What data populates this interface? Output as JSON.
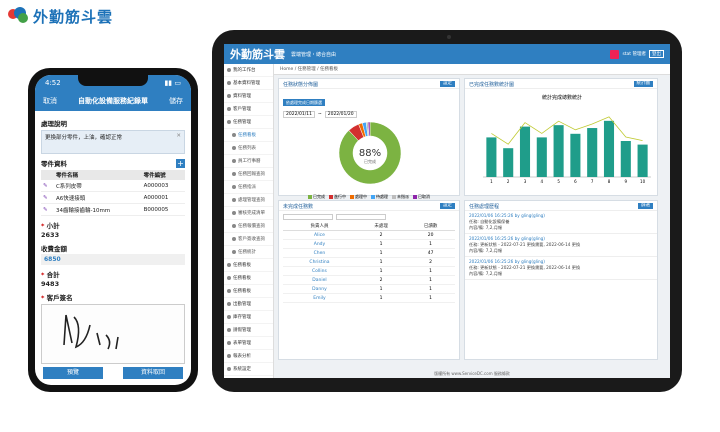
{
  "logo": {
    "text": "外勤筋斗雲"
  },
  "phone": {
    "time": "4:52",
    "nav": {
      "cancel": "取消",
      "title": "自動化設備服務紀錄單",
      "save": "儲存"
    },
    "desc_label": "處理說明",
    "desc_text": "更換部分零件，上油，確認正常",
    "parts_label": "零件資料",
    "parts_headers": [
      "零件名稱",
      "零件編號"
    ],
    "parts": [
      {
        "name": "C系列皮帶",
        "code": "A000003"
      },
      {
        "name": "A6快速接頭",
        "code": "A000001"
      },
      {
        "name": "34齒輪接齒輪-10mm",
        "code": "B000005"
      }
    ],
    "subtotal_label": "小計",
    "subtotal": "2633",
    "fee_label": "收費金額",
    "fee": "6850",
    "total_label": "合計",
    "total": "9483",
    "sign_label": "客戶簽名",
    "btn_preview": "預覽",
    "btn_fetch": "資料取回"
  },
  "tablet": {
    "brand": "外勤筋斗雲",
    "slogan": "雲端管理・總合自由",
    "user": "stat 管理者",
    "logout": "登出",
    "crumb": "Home / 任務管理 / 任務看板",
    "sidebar": [
      {
        "label": "我的工作台",
        "sub": false,
        "active": false
      },
      {
        "label": "基本資料管理",
        "sub": false,
        "active": false
      },
      {
        "label": "資料管理",
        "sub": false,
        "active": false
      },
      {
        "label": "客戶管理",
        "sub": false,
        "active": false
      },
      {
        "label": "任務管理",
        "sub": false,
        "active": false
      },
      {
        "label": "任務看板",
        "sub": true,
        "active": true
      },
      {
        "label": "任務列表",
        "sub": true,
        "active": false
      },
      {
        "label": "員工行事曆",
        "sub": true,
        "active": false
      },
      {
        "label": "任務回報查詢",
        "sub": true,
        "active": false
      },
      {
        "label": "任務指派",
        "sub": true,
        "active": false
      },
      {
        "label": "處理管理查詢",
        "sub": true,
        "active": false
      },
      {
        "label": "審核完成清單",
        "sub": true,
        "active": false
      },
      {
        "label": "任務報價查詢",
        "sub": true,
        "active": false
      },
      {
        "label": "客戶簽收查詢",
        "sub": true,
        "active": false
      },
      {
        "label": "任務統計",
        "sub": true,
        "active": false
      },
      {
        "label": "任務看板",
        "sub": false,
        "active": false
      },
      {
        "label": "任務看板",
        "sub": false,
        "active": false
      },
      {
        "label": "任務看板",
        "sub": false,
        "active": false
      },
      {
        "label": "出勤管理",
        "sub": false,
        "active": false
      },
      {
        "label": "庫存管理",
        "sub": false,
        "active": false
      },
      {
        "label": "請假管理",
        "sub": false,
        "active": false
      },
      {
        "label": "表單管理",
        "sub": false,
        "active": false
      },
      {
        "label": "報表分析",
        "sub": false,
        "active": false
      },
      {
        "label": "系統設定",
        "sub": false,
        "active": false
      },
      {
        "label": "登出",
        "sub": false,
        "active": false
      }
    ],
    "status_panel": {
      "title": "任務狀態分佈圖",
      "tab": "依處理完成日期篩選",
      "btn": "設定",
      "date_from": "2022/01/11",
      "date_to": "2022/01/20",
      "center": "88%",
      "center_sub": "已完成"
    },
    "trend_panel": {
      "title": "已完成任務數統計圖",
      "btn": "統計圖",
      "chart_title": "統計完成總數統計"
    },
    "user_panel": {
      "title": "未完成任務數",
      "btn": "設定",
      "headers": [
        "負責人員",
        "未處理",
        "已讀數"
      ],
      "rows": [
        [
          "Alice",
          "2",
          "20"
        ],
        [
          "Andy",
          "1",
          "1"
        ],
        [
          "Chen",
          "1",
          "47"
        ],
        [
          "Christina",
          "1",
          "2"
        ],
        [
          "Collins",
          "1",
          "1"
        ],
        [
          "Daniel",
          "2",
          "1"
        ],
        [
          "Danny",
          "1",
          "1"
        ],
        [
          "Emily",
          "1",
          "1"
        ]
      ]
    },
    "log_panel": {
      "title": "任務處理歷程",
      "btn": "篩選",
      "logs": [
        {
          "head": "2022/01/06 16:25:26 by gling(gling)",
          "l1": "任務: 自動化設備保養",
          "l2": "內容/備: 7,2,月報"
        },
        {
          "head": "2022/01/06 16:25:26 by gling(gling)",
          "l1": "任務: 更新狀態 - 2022-07-21 更換需要, 2022-06-14 更換",
          "l2": "內容/備: 7,2,月報"
        },
        {
          "head": "2022/01/06 16:25:26 by gling(gling)",
          "l1": "任務: 更新狀態 - 2022-07-21 更換需要, 2022-06-14 更換",
          "l2": "內容/備: 7,2,月報"
        }
      ]
    },
    "footer": "版權所有 www.ServiceDC.com 服務條款"
  },
  "chart_data": [
    {
      "type": "pie",
      "title": "",
      "labels": [
        "已完成",
        "進行中",
        "處理中",
        "待處理",
        "未指派",
        "已取消"
      ],
      "values": [
        88,
        6,
        2,
        2,
        1,
        1
      ],
      "colors": [
        "#7cb342",
        "#d32f2f",
        "#ef6c00",
        "#42a5f5",
        "#bdbdbd",
        "#8e24aa"
      ]
    },
    {
      "type": "bar",
      "title": "統計完成總數統計",
      "categories": [
        "1",
        "2",
        "3",
        "4",
        "5",
        "6",
        "7",
        "8",
        "9",
        "10"
      ],
      "series": [
        {
          "name": "",
          "values": [
            55,
            40,
            70,
            55,
            72,
            60,
            68,
            78,
            50,
            45
          ]
        }
      ],
      "ylim": [
        0,
        100
      ]
    }
  ]
}
